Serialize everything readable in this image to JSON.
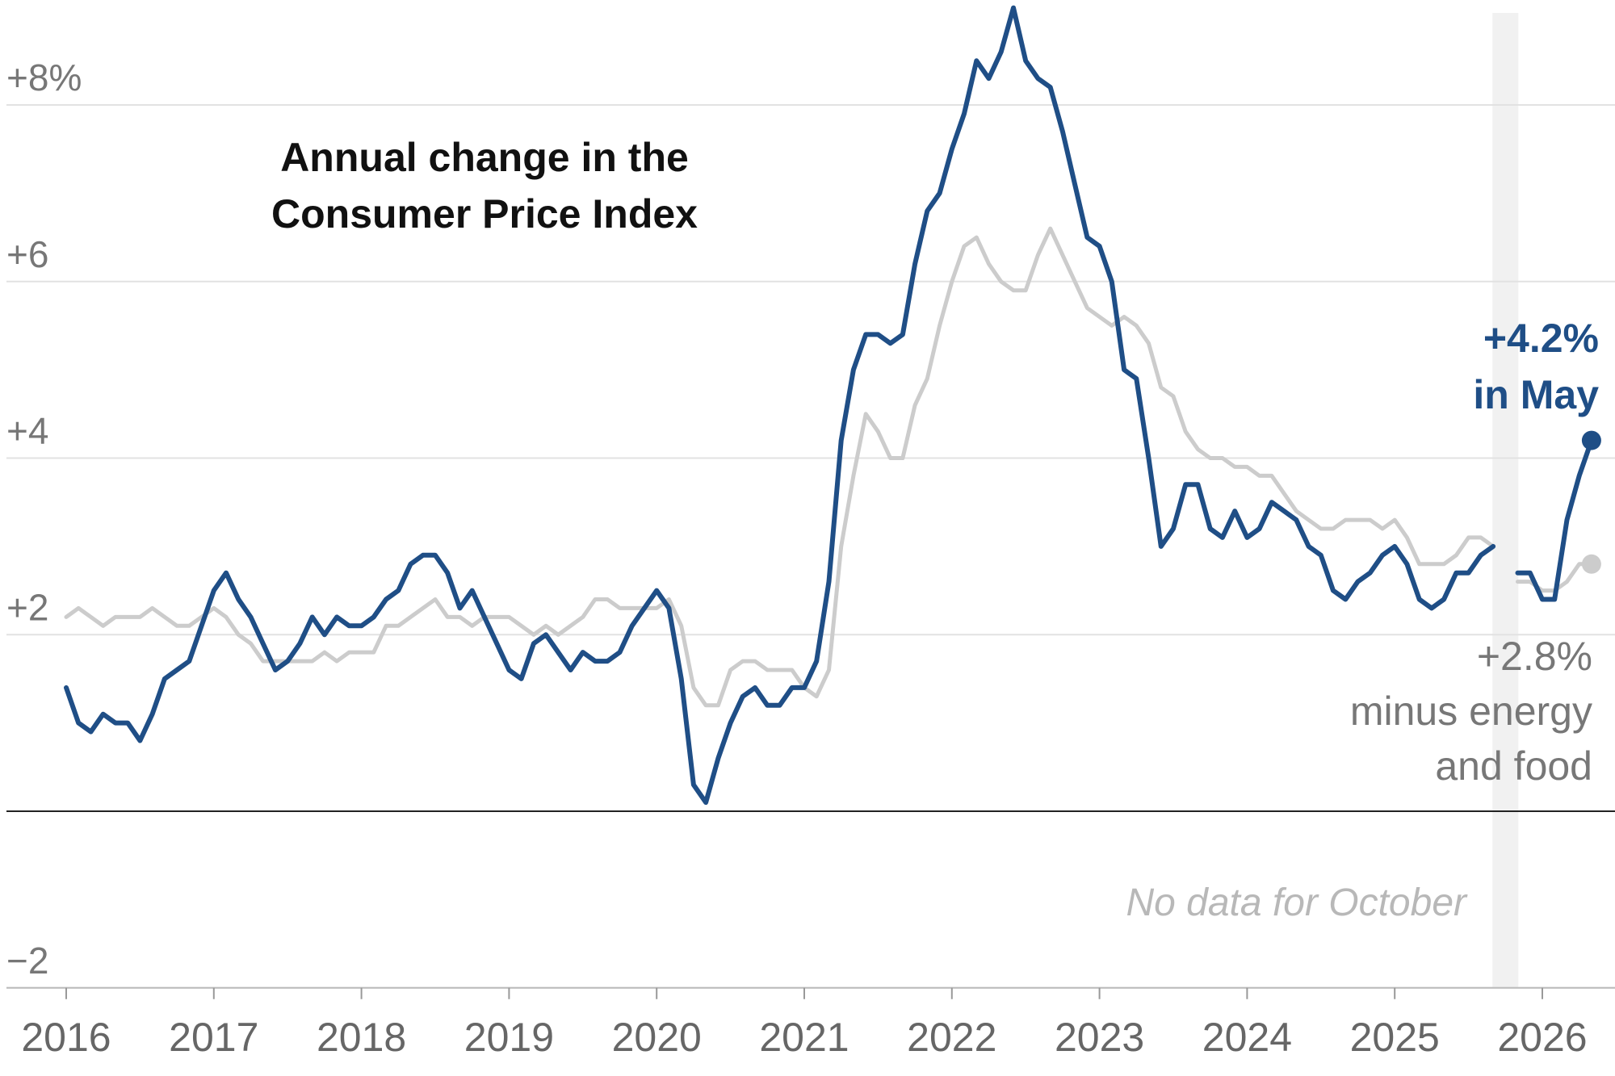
{
  "chart_data": {
    "type": "line",
    "title_lines": [
      "Annual change in the",
      "Consumer Price Index"
    ],
    "xlabel": "",
    "ylabel": "",
    "xlim": [
      2015.6,
      2026.55
    ],
    "ylim": [
      -2,
      9
    ],
    "x_ticks": [
      {
        "value": 2016,
        "label": "2016"
      },
      {
        "value": 2017,
        "label": "2017"
      },
      {
        "value": 2018,
        "label": "2018"
      },
      {
        "value": 2019,
        "label": "2019"
      },
      {
        "value": 2020,
        "label": "2020"
      },
      {
        "value": 2021,
        "label": "2021"
      },
      {
        "value": 2022,
        "label": "2022"
      },
      {
        "value": 2023,
        "label": "2023"
      },
      {
        "value": 2024,
        "label": "2024"
      },
      {
        "value": 2025,
        "label": "2025"
      },
      {
        "value": 2026,
        "label": "2026"
      }
    ],
    "y_ticks": [
      {
        "value": 8,
        "label": "+8%"
      },
      {
        "value": 6,
        "label": "+6"
      },
      {
        "value": 4,
        "label": "+4"
      },
      {
        "value": 2,
        "label": "+2"
      },
      {
        "value": -2,
        "label": "−2"
      }
    ],
    "grid": true,
    "gap_note": "No data for October",
    "gap_month": "2025-10",
    "series": [
      {
        "key": "all_items",
        "color": "#1f4e86",
        "start": "2016-01",
        "annotation_lines": [
          "+4.2%",
          "in May"
        ],
        "values": [
          1.4,
          1.0,
          0.9,
          1.1,
          1.0,
          1.0,
          0.8,
          1.1,
          1.5,
          1.6,
          1.7,
          2.1,
          2.5,
          2.7,
          2.4,
          2.2,
          1.9,
          1.6,
          1.7,
          1.9,
          2.2,
          2.0,
          2.2,
          2.1,
          2.1,
          2.2,
          2.4,
          2.5,
          2.8,
          2.9,
          2.9,
          2.7,
          2.3,
          2.5,
          2.2,
          1.9,
          1.6,
          1.5,
          1.9,
          2.0,
          1.8,
          1.6,
          1.8,
          1.7,
          1.7,
          1.8,
          2.1,
          2.3,
          2.5,
          2.3,
          1.5,
          0.3,
          0.1,
          0.6,
          1.0,
          1.3,
          1.4,
          1.2,
          1.2,
          1.4,
          1.4,
          1.7,
          2.6,
          4.2,
          5.0,
          5.4,
          5.4,
          5.3,
          5.4,
          6.2,
          6.8,
          7.0,
          7.5,
          7.9,
          8.5,
          8.3,
          8.6,
          9.1,
          8.5,
          8.3,
          8.2,
          7.7,
          7.1,
          6.5,
          6.4,
          6.0,
          5.0,
          4.9,
          4.0,
          3.0,
          3.2,
          3.7,
          3.7,
          3.2,
          3.1,
          3.4,
          3.1,
          3.2,
          3.5,
          3.4,
          3.3,
          3.0,
          2.9,
          2.5,
          2.4,
          2.6,
          2.7,
          2.9,
          3.0,
          2.8,
          2.4,
          2.3,
          2.4,
          2.7,
          2.7,
          2.9,
          3.0,
          null,
          2.7,
          2.7,
          2.4,
          2.4,
          3.3,
          3.8,
          4.2
        ]
      },
      {
        "key": "core",
        "color": "#cccccc",
        "start": "2016-01",
        "annotation_lines": [
          "+2.8%",
          "minus energy",
          "and food"
        ],
        "values": [
          2.2,
          2.3,
          2.2,
          2.1,
          2.2,
          2.2,
          2.2,
          2.3,
          2.2,
          2.1,
          2.1,
          2.2,
          2.3,
          2.2,
          2.0,
          1.9,
          1.7,
          1.7,
          1.7,
          1.7,
          1.7,
          1.8,
          1.7,
          1.8,
          1.8,
          1.8,
          2.1,
          2.1,
          2.2,
          2.3,
          2.4,
          2.2,
          2.2,
          2.1,
          2.2,
          2.2,
          2.2,
          2.1,
          2.0,
          2.1,
          2.0,
          2.1,
          2.2,
          2.4,
          2.4,
          2.3,
          2.3,
          2.3,
          2.3,
          2.4,
          2.1,
          1.4,
          1.2,
          1.2,
          1.6,
          1.7,
          1.7,
          1.6,
          1.6,
          1.6,
          1.4,
          1.3,
          1.6,
          3.0,
          3.8,
          4.5,
          4.3,
          4.0,
          4.0,
          4.6,
          4.9,
          5.5,
          6.0,
          6.4,
          6.5,
          6.2,
          6.0,
          5.9,
          5.9,
          6.3,
          6.6,
          6.3,
          6.0,
          5.7,
          5.6,
          5.5,
          5.6,
          5.5,
          5.3,
          4.8,
          4.7,
          4.3,
          4.1,
          4.0,
          4.0,
          3.9,
          3.9,
          3.8,
          3.8,
          3.6,
          3.4,
          3.3,
          3.2,
          3.2,
          3.3,
          3.3,
          3.3,
          3.2,
          3.3,
          3.1,
          2.8,
          2.8,
          2.8,
          2.9,
          3.1,
          3.1,
          3.0,
          null,
          2.6,
          2.6,
          2.5,
          2.5,
          2.6,
          2.8,
          2.8
        ]
      }
    ]
  }
}
